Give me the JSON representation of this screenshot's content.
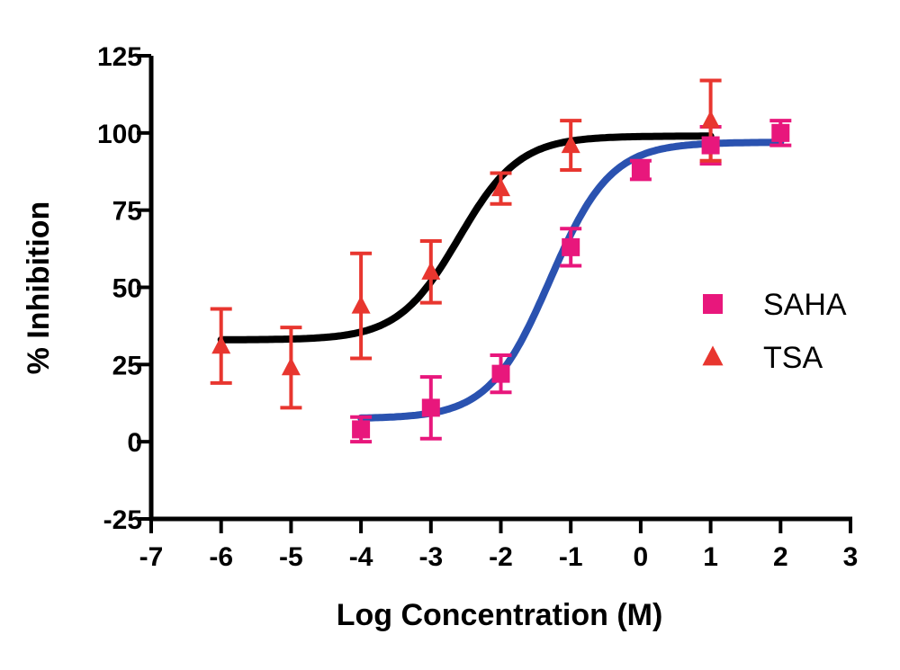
{
  "chart_data": {
    "type": "scatter",
    "title": "",
    "xlabel": "Log Concentration (M)",
    "ylabel": "% Inhibition",
    "xlim": [
      -7,
      3
    ],
    "ylim": [
      -25,
      125
    ],
    "xticks": [
      "-7",
      "-6",
      "-5",
      "-4",
      "-3",
      "-2",
      "-1",
      "0",
      "1",
      "2",
      "3"
    ],
    "yticks": [
      "-25",
      "0",
      "25",
      "50",
      "75",
      "100",
      "125"
    ],
    "grid": false,
    "legend_position": "right",
    "series": [
      {
        "name": "SAHA",
        "marker": "square",
        "marker_color": "#e8177c",
        "error_bar_color": "#e8177c",
        "fit_color": "#2a52b0",
        "x": [
          -4,
          -3,
          -2,
          -1,
          0,
          1,
          2
        ],
        "y": [
          4,
          11,
          22,
          63,
          88,
          96,
          100
        ],
        "error": [
          4,
          10,
          6,
          6,
          3,
          6,
          4
        ],
        "fit": {
          "bottom": 7.5,
          "top": 97,
          "log_ec50": -1.3,
          "hill": 1.0,
          "x_range": [
            -4,
            2
          ]
        }
      },
      {
        "name": "TSA",
        "marker": "triangle",
        "marker_color": "#e8362f",
        "error_bar_color": "#e8362f",
        "fit_color": "#000000",
        "x": [
          -6,
          -5,
          -4,
          -3,
          -2,
          -1,
          1
        ],
        "y": [
          31,
          24,
          44,
          55,
          82,
          96,
          104
        ],
        "error": [
          12,
          13,
          17,
          10,
          5,
          8,
          13
        ],
        "fit": {
          "bottom": 33,
          "top": 99,
          "log_ec50": -2.6,
          "hill": 1.0,
          "x_range": [
            -6,
            1
          ]
        }
      }
    ]
  }
}
